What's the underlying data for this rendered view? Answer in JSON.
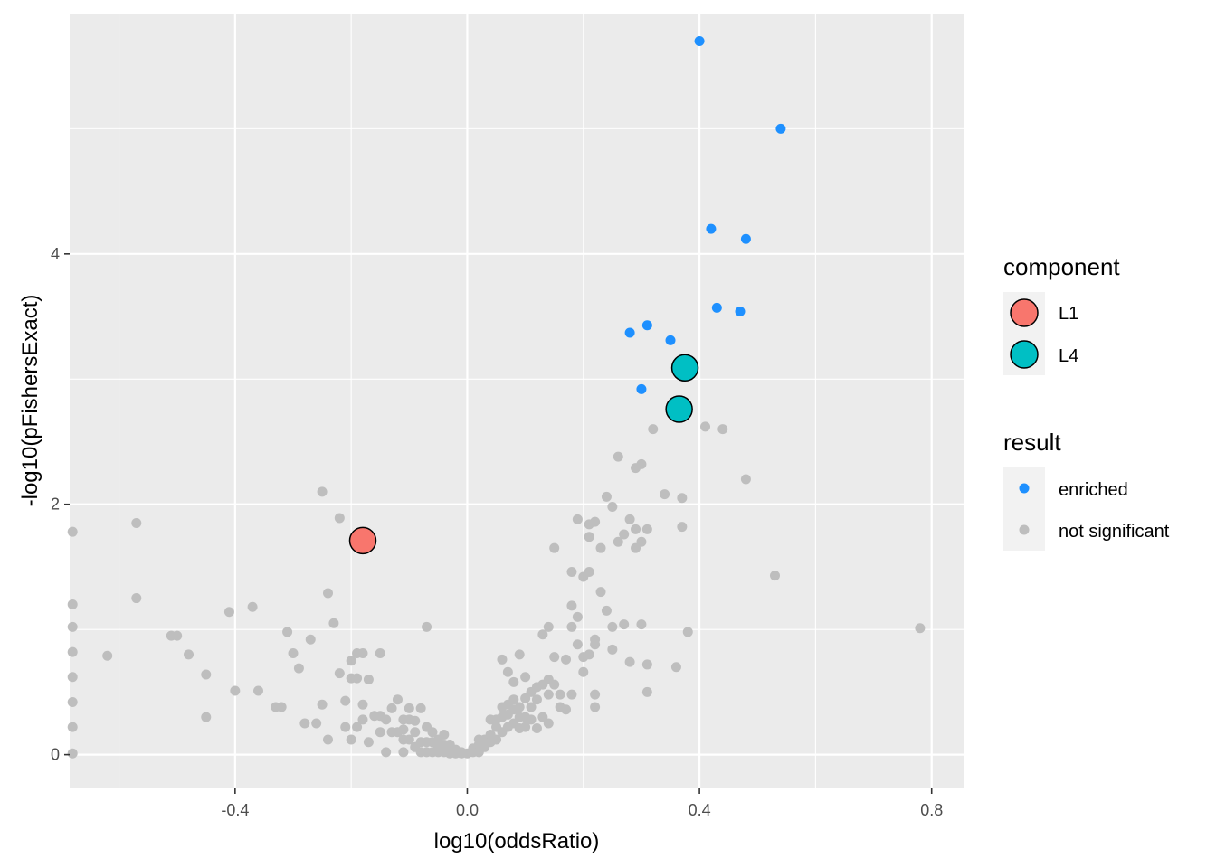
{
  "chart_data": {
    "type": "scatter",
    "xlabel": "log10(oddsRatio)",
    "ylabel": "-log10(pFishersExact)",
    "xlim": [
      -0.685,
      0.855
    ],
    "ylim": [
      -0.27,
      5.92
    ],
    "x_ticks": [
      -0.4,
      0.0,
      0.4,
      0.8
    ],
    "x_tick_labels": [
      "-0.4",
      "0.0",
      "0.4",
      "0.8"
    ],
    "y_ticks": [
      0,
      2,
      4
    ],
    "y_tick_labels": [
      "0",
      "2",
      "4"
    ],
    "grid": true,
    "legend_placement": "right",
    "series": [
      {
        "name": "not significant",
        "legend_group": "result",
        "color": "#bebebe",
        "points": [
          [
            -0.68,
            1.78
          ],
          [
            -0.68,
            1.2
          ],
          [
            -0.68,
            1.02
          ],
          [
            -0.68,
            0.82
          ],
          [
            -0.68,
            0.62
          ],
          [
            -0.68,
            0.42
          ],
          [
            -0.68,
            0.22
          ],
          [
            -0.68,
            0.01
          ],
          [
            -0.62,
            0.79
          ],
          [
            -0.57,
            1.85
          ],
          [
            -0.57,
            1.25
          ],
          [
            -0.51,
            0.95
          ],
          [
            -0.5,
            0.95
          ],
          [
            -0.48,
            0.8
          ],
          [
            -0.45,
            0.64
          ],
          [
            -0.45,
            0.3
          ],
          [
            -0.41,
            1.14
          ],
          [
            -0.4,
            0.51
          ],
          [
            -0.37,
            1.18
          ],
          [
            -0.36,
            0.51
          ],
          [
            -0.33,
            0.38
          ],
          [
            -0.32,
            0.38
          ],
          [
            -0.31,
            0.98
          ],
          [
            -0.3,
            0.81
          ],
          [
            -0.29,
            0.69
          ],
          [
            -0.28,
            0.25
          ],
          [
            -0.27,
            0.92
          ],
          [
            -0.26,
            0.25
          ],
          [
            -0.25,
            2.1
          ],
          [
            -0.25,
            0.4
          ],
          [
            -0.24,
            1.29
          ],
          [
            -0.24,
            0.12
          ],
          [
            -0.23,
            1.05
          ],
          [
            -0.22,
            1.89
          ],
          [
            -0.22,
            0.65
          ],
          [
            -0.21,
            0.22
          ],
          [
            -0.21,
            0.43
          ],
          [
            -0.2,
            0.12
          ],
          [
            -0.2,
            0.75
          ],
          [
            -0.2,
            0.61
          ],
          [
            -0.19,
            0.81
          ],
          [
            -0.19,
            0.61
          ],
          [
            -0.19,
            0.22
          ],
          [
            -0.18,
            0.4
          ],
          [
            -0.18,
            0.28
          ],
          [
            -0.18,
            0.81
          ],
          [
            -0.17,
            0.6
          ],
          [
            -0.17,
            0.1
          ],
          [
            -0.16,
            0.31
          ],
          [
            -0.15,
            0.31
          ],
          [
            -0.15,
            0.81
          ],
          [
            -0.15,
            0.18
          ],
          [
            -0.14,
            0.28
          ],
          [
            -0.14,
            0.02
          ],
          [
            -0.13,
            0.37
          ],
          [
            -0.13,
            0.18
          ],
          [
            -0.12,
            0.18
          ],
          [
            -0.12,
            0.44
          ],
          [
            -0.11,
            0.12
          ],
          [
            -0.11,
            0.02
          ],
          [
            -0.11,
            0.2
          ],
          [
            -0.11,
            0.28
          ],
          [
            -0.1,
            0.37
          ],
          [
            -0.1,
            0.28
          ],
          [
            -0.1,
            0.12
          ],
          [
            -0.09,
            0.06
          ],
          [
            -0.09,
            0.18
          ],
          [
            -0.09,
            0.27
          ],
          [
            -0.08,
            0.37
          ],
          [
            -0.08,
            0.1
          ],
          [
            -0.08,
            0.02
          ],
          [
            -0.07,
            0.22
          ],
          [
            -0.07,
            1.02
          ],
          [
            -0.07,
            0.1
          ],
          [
            -0.07,
            0.02
          ],
          [
            -0.06,
            0.18
          ],
          [
            -0.06,
            0.1
          ],
          [
            -0.06,
            0.02
          ],
          [
            -0.05,
            0.12
          ],
          [
            -0.05,
            0.06
          ],
          [
            -0.05,
            0.02
          ],
          [
            -0.04,
            0.16
          ],
          [
            -0.04,
            0.08
          ],
          [
            -0.04,
            0.02
          ],
          [
            -0.03,
            0.08
          ],
          [
            -0.03,
            0.04
          ],
          [
            -0.03,
            0.01
          ],
          [
            -0.02,
            0.04
          ],
          [
            -0.02,
            0.01
          ],
          [
            -0.01,
            0.02
          ],
          [
            -0.01,
            0.01
          ],
          [
            0.0,
            0.01
          ],
          [
            0.01,
            0.02
          ],
          [
            0.01,
            0.05
          ],
          [
            0.02,
            0.02
          ],
          [
            0.02,
            0.08
          ],
          [
            0.02,
            0.12
          ],
          [
            0.03,
            0.06
          ],
          [
            0.03,
            0.12
          ],
          [
            0.04,
            0.1
          ],
          [
            0.04,
            0.28
          ],
          [
            0.04,
            0.16
          ],
          [
            0.05,
            0.22
          ],
          [
            0.05,
            0.28
          ],
          [
            0.05,
            0.12
          ],
          [
            0.06,
            0.18
          ],
          [
            0.06,
            0.3
          ],
          [
            0.06,
            0.38
          ],
          [
            0.06,
            0.76
          ],
          [
            0.07,
            0.22
          ],
          [
            0.07,
            0.32
          ],
          [
            0.07,
            0.4
          ],
          [
            0.07,
            0.66
          ],
          [
            0.08,
            0.25
          ],
          [
            0.08,
            0.36
          ],
          [
            0.08,
            0.44
          ],
          [
            0.08,
            0.58
          ],
          [
            0.09,
            0.21
          ],
          [
            0.09,
            0.3
          ],
          [
            0.09,
            0.38
          ],
          [
            0.09,
            0.8
          ],
          [
            0.1,
            0.22
          ],
          [
            0.1,
            0.3
          ],
          [
            0.1,
            0.45
          ],
          [
            0.1,
            0.62
          ],
          [
            0.11,
            0.28
          ],
          [
            0.11,
            0.5
          ],
          [
            0.11,
            0.38
          ],
          [
            0.12,
            0.54
          ],
          [
            0.12,
            0.21
          ],
          [
            0.12,
            0.44
          ],
          [
            0.13,
            0.3
          ],
          [
            0.13,
            0.56
          ],
          [
            0.13,
            0.96
          ],
          [
            0.14,
            0.6
          ],
          [
            0.14,
            0.25
          ],
          [
            0.14,
            0.48
          ],
          [
            0.14,
            1.02
          ],
          [
            0.15,
            1.65
          ],
          [
            0.15,
            0.78
          ],
          [
            0.15,
            0.56
          ],
          [
            0.16,
            0.48
          ],
          [
            0.16,
            0.38
          ],
          [
            0.17,
            0.76
          ],
          [
            0.17,
            0.36
          ],
          [
            0.18,
            1.46
          ],
          [
            0.18,
            1.19
          ],
          [
            0.18,
            1.02
          ],
          [
            0.18,
            0.48
          ],
          [
            0.19,
            1.88
          ],
          [
            0.19,
            1.1
          ],
          [
            0.19,
            0.88
          ],
          [
            0.2,
            1.42
          ],
          [
            0.2,
            0.66
          ],
          [
            0.2,
            0.78
          ],
          [
            0.21,
            1.84
          ],
          [
            0.21,
            1.46
          ],
          [
            0.21,
            1.74
          ],
          [
            0.21,
            0.8
          ],
          [
            0.22,
            1.86
          ],
          [
            0.22,
            0.88
          ],
          [
            0.22,
            0.92
          ],
          [
            0.22,
            0.38
          ],
          [
            0.22,
            0.48
          ],
          [
            0.23,
            1.3
          ],
          [
            0.23,
            1.65
          ],
          [
            0.24,
            2.06
          ],
          [
            0.24,
            1.15
          ],
          [
            0.25,
            1.02
          ],
          [
            0.25,
            0.84
          ],
          [
            0.25,
            1.98
          ],
          [
            0.26,
            1.7
          ],
          [
            0.26,
            2.38
          ],
          [
            0.27,
            1.76
          ],
          [
            0.27,
            1.04
          ],
          [
            0.28,
            1.88
          ],
          [
            0.28,
            0.74
          ],
          [
            0.29,
            1.65
          ],
          [
            0.29,
            1.8
          ],
          [
            0.29,
            2.29
          ],
          [
            0.3,
            2.32
          ],
          [
            0.3,
            1.7
          ],
          [
            0.3,
            1.04
          ],
          [
            0.31,
            1.8
          ],
          [
            0.31,
            0.72
          ],
          [
            0.31,
            0.5
          ],
          [
            0.32,
            2.6
          ],
          [
            0.34,
            2.08
          ],
          [
            0.36,
            0.7
          ],
          [
            0.37,
            2.05
          ],
          [
            0.37,
            1.82
          ],
          [
            0.38,
            0.98
          ],
          [
            0.41,
            2.62
          ],
          [
            0.44,
            2.6
          ],
          [
            0.48,
            2.2
          ],
          [
            0.53,
            1.43
          ],
          [
            0.78,
            1.01
          ]
        ]
      },
      {
        "name": "enriched",
        "legend_group": "result",
        "color": "#1e90ff",
        "points": [
          [
            0.4,
            5.7
          ],
          [
            0.54,
            5.0
          ],
          [
            0.42,
            4.2
          ],
          [
            0.48,
            4.12
          ],
          [
            0.43,
            3.57
          ],
          [
            0.47,
            3.54
          ],
          [
            0.28,
            3.37
          ],
          [
            0.31,
            3.43
          ],
          [
            0.35,
            3.31
          ],
          [
            0.3,
            2.92
          ]
        ]
      },
      {
        "name": "L1",
        "legend_group": "component",
        "color": "#f8766d",
        "points": [
          [
            -0.18,
            1.71
          ]
        ]
      },
      {
        "name": "L4",
        "legend_group": "component",
        "color": "#00bfc4",
        "points": [
          [
            0.375,
            3.09
          ],
          [
            0.365,
            2.76
          ]
        ]
      }
    ],
    "legend": {
      "component": {
        "title": "component",
        "entries": [
          "L1",
          "L4"
        ]
      },
      "result": {
        "title": "result",
        "entries": [
          "enriched",
          "not significant"
        ]
      }
    }
  }
}
